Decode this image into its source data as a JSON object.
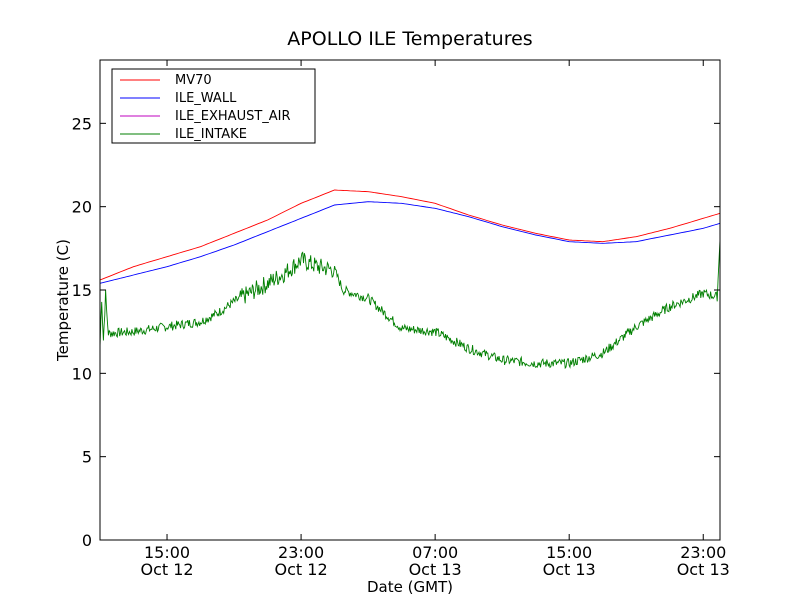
{
  "chart_data": {
    "type": "line",
    "title": "APOLLO ILE Temperatures",
    "xlabel": "Date (GMT)",
    "ylabel": "Temperature (C)",
    "x_axis_type": "datetime",
    "xlim": [
      "2012-10-12T11:00",
      "2012-10-14T00:00"
    ],
    "ylim": [
      0,
      28.8
    ],
    "yticks": [
      0,
      5,
      10,
      15,
      20,
      25
    ],
    "xticks": [
      {
        "x": "2012-10-12T15:00",
        "label_time": "15:00",
        "label_date": "Oct 12"
      },
      {
        "x": "2012-10-12T23:00",
        "label_time": "23:00",
        "label_date": "Oct 12"
      },
      {
        "x": "2012-10-13T07:00",
        "label_time": "07:00",
        "label_date": "Oct 13"
      },
      {
        "x": "2012-10-13T15:00",
        "label_time": "15:00",
        "label_date": "Oct 13"
      },
      {
        "x": "2012-10-13T23:00",
        "label_time": "23:00",
        "label_date": "Oct 13"
      }
    ],
    "grid": false,
    "legend_position": "top-left",
    "series": [
      {
        "name": "MV70",
        "color": "#ff0000",
        "points": [
          [
            "2012-10-12T11:00",
            15.6
          ],
          [
            "2012-10-12T13:00",
            16.4
          ],
          [
            "2012-10-12T15:00",
            17.0
          ],
          [
            "2012-10-12T17:00",
            17.6
          ],
          [
            "2012-10-12T19:00",
            18.4
          ],
          [
            "2012-10-12T21:00",
            19.2
          ],
          [
            "2012-10-12T23:00",
            20.2
          ],
          [
            "2012-10-13T01:00",
            21.0
          ],
          [
            "2012-10-13T03:00",
            20.9
          ],
          [
            "2012-10-13T05:00",
            20.6
          ],
          [
            "2012-10-13T07:00",
            20.2
          ],
          [
            "2012-10-13T09:00",
            19.5
          ],
          [
            "2012-10-13T11:00",
            18.9
          ],
          [
            "2012-10-13T13:00",
            18.4
          ],
          [
            "2012-10-13T15:00",
            18.0
          ],
          [
            "2012-10-13T17:00",
            17.9
          ],
          [
            "2012-10-13T19:00",
            18.2
          ],
          [
            "2012-10-13T21:00",
            18.7
          ],
          [
            "2012-10-13T23:00",
            19.3
          ],
          [
            "2012-10-14T00:00",
            19.6
          ]
        ]
      },
      {
        "name": "ILE_WALL",
        "color": "#0000ff",
        "points": [
          [
            "2012-10-12T11:00",
            15.4
          ],
          [
            "2012-10-12T13:00",
            15.9
          ],
          [
            "2012-10-12T15:00",
            16.4
          ],
          [
            "2012-10-12T17:00",
            17.0
          ],
          [
            "2012-10-12T19:00",
            17.7
          ],
          [
            "2012-10-12T21:00",
            18.5
          ],
          [
            "2012-10-12T23:00",
            19.3
          ],
          [
            "2012-10-13T01:00",
            20.1
          ],
          [
            "2012-10-13T03:00",
            20.3
          ],
          [
            "2012-10-13T05:00",
            20.2
          ],
          [
            "2012-10-13T07:00",
            19.9
          ],
          [
            "2012-10-13T09:00",
            19.4
          ],
          [
            "2012-10-13T11:00",
            18.8
          ],
          [
            "2012-10-13T13:00",
            18.3
          ],
          [
            "2012-10-13T15:00",
            17.9
          ],
          [
            "2012-10-13T17:00",
            17.8
          ],
          [
            "2012-10-13T19:00",
            17.9
          ],
          [
            "2012-10-13T21:00",
            18.3
          ],
          [
            "2012-10-13T23:00",
            18.7
          ],
          [
            "2012-10-14T00:00",
            19.0
          ]
        ]
      },
      {
        "name": "ILE_EXHAUST_AIR",
        "color": "#bf00bf",
        "points": []
      },
      {
        "name": "ILE_INTAKE",
        "color": "#007f00",
        "points": [
          [
            "2012-10-12T11:00",
            11.6
          ],
          [
            "2012-10-12T11:06",
            14.5
          ],
          [
            "2012-10-12T11:12",
            12.0
          ],
          [
            "2012-10-12T11:20",
            14.6
          ],
          [
            "2012-10-12T11:30",
            12.4
          ],
          [
            "2012-10-12T13:00",
            12.5
          ],
          [
            "2012-10-12T15:00",
            12.8
          ],
          [
            "2012-10-12T17:00",
            13.1
          ],
          [
            "2012-10-12T18:00",
            13.6
          ],
          [
            "2012-10-12T19:00",
            14.3
          ],
          [
            "2012-10-12T21:00",
            15.4
          ],
          [
            "2012-10-12T22:00",
            16.0
          ],
          [
            "2012-10-12T23:00",
            16.8
          ],
          [
            "2012-10-13T00:00",
            16.4
          ],
          [
            "2012-10-13T01:00",
            16.2
          ],
          [
            "2012-10-13T01:30",
            15.0
          ],
          [
            "2012-10-13T03:00",
            14.5
          ],
          [
            "2012-10-13T05:00",
            12.7
          ],
          [
            "2012-10-13T07:00",
            12.5
          ],
          [
            "2012-10-13T09:00",
            11.5
          ],
          [
            "2012-10-13T11:00",
            10.8
          ],
          [
            "2012-10-13T13:00",
            10.6
          ],
          [
            "2012-10-13T15:00",
            10.6
          ],
          [
            "2012-10-13T17:00",
            11.2
          ],
          [
            "2012-10-13T19:00",
            12.8
          ],
          [
            "2012-10-13T21:00",
            14.0
          ],
          [
            "2012-10-13T23:00",
            14.8
          ],
          [
            "2012-10-13T23:50",
            14.6
          ],
          [
            "2012-10-14T00:00",
            18.0
          ]
        ]
      }
    ]
  }
}
